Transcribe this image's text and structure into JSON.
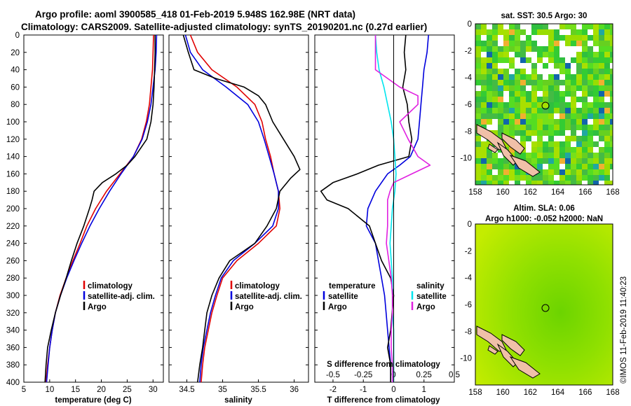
{
  "title_line1": "Argo profile: aoml 3900585_418 01-Feb-2019 5.948S 162.98E (NRT data)",
  "title_line2": "Climatology: CARS2009. Satellite-adjusted climatology: synTS_20190201.nc (0.27d earlier)",
  "sst_title": "sat. SST: 30.5 Argo: 30",
  "sla_title1": "Altim. SLA: 0.06",
  "sla_title2": "Argo h1000: -0.052 h2000: NaN",
  "imos_stamp": "©IMOS 11-Feb-2019 11:40:23",
  "colors": {
    "climatology": "#e00000",
    "satellite": "#0000dd",
    "argo": "#000000",
    "sat_salinity": "#00e5ee",
    "salinity_diff": "#e020e0"
  },
  "chart_data": [
    {
      "type": "line",
      "name": "temperature",
      "xlabel": "temperature (deg C)",
      "xlim": [
        5,
        32
      ],
      "ylim": [
        400,
        0
      ],
      "xticks": [
        "5",
        "10",
        "15",
        "20",
        "25",
        "30"
      ],
      "yticks": [
        "0",
        "20",
        "40",
        "60",
        "80",
        "100",
        "120",
        "140",
        "160",
        "180",
        "200",
        "220",
        "240",
        "260",
        "280",
        "300",
        "320",
        "340",
        "360",
        "380",
        "400"
      ],
      "legend": [
        "climatology",
        "satellite-adj. clim.",
        "Argo"
      ],
      "series": [
        {
          "name": "climatology",
          "depth": [
            0,
            20,
            40,
            60,
            80,
            100,
            120,
            140,
            160,
            180,
            200,
            220,
            240,
            260,
            280,
            300,
            320,
            340,
            360,
            380,
            400
          ],
          "values": [
            30.1,
            30.0,
            29.9,
            29.6,
            29.3,
            28.7,
            27.8,
            26.2,
            23.6,
            21.0,
            18.9,
            17.2,
            15.9,
            14.5,
            13.2,
            12.0,
            11.1,
            10.5,
            10.0,
            9.6,
            9.3
          ]
        },
        {
          "name": "satellite-adj. clim.",
          "depth": [
            0,
            20,
            40,
            60,
            80,
            100,
            120,
            140,
            160,
            180,
            200,
            220,
            240,
            260,
            280,
            300,
            320,
            340,
            360,
            380,
            400
          ],
          "values": [
            30.7,
            30.6,
            30.4,
            30.0,
            29.6,
            28.9,
            27.9,
            26.2,
            23.8,
            21.6,
            19.6,
            17.8,
            16.2,
            14.7,
            13.3,
            12.1,
            11.1,
            10.5,
            10.0,
            9.7,
            9.4
          ]
        },
        {
          "name": "Argo",
          "depth": [
            0,
            10,
            20,
            40,
            60,
            80,
            100,
            120,
            140,
            150,
            160,
            170,
            180,
            190,
            200,
            220,
            240,
            260,
            280,
            300,
            320,
            340,
            360,
            380,
            400
          ],
          "values": [
            30.4,
            30.4,
            30.4,
            30.3,
            30.2,
            30.0,
            29.6,
            28.8,
            26.5,
            25.0,
            22.8,
            20.2,
            18.6,
            18.2,
            17.7,
            16.6,
            15.3,
            14.2,
            13.2,
            12.1,
            11.1,
            10.3,
            9.6,
            9.3,
            9.1
          ]
        }
      ]
    },
    {
      "type": "line",
      "name": "salinity",
      "xlabel": "salinity",
      "xlim": [
        34.25,
        36.2
      ],
      "ylim": [
        400,
        0
      ],
      "xticks": [
        "34.5",
        "35",
        "35.5",
        "36"
      ],
      "legend": [
        "climatology",
        "satellite-adj. clim.",
        "Argo"
      ],
      "series": [
        {
          "name": "climatology",
          "depth": [
            0,
            20,
            40,
            60,
            80,
            100,
            120,
            140,
            160,
            180,
            200,
            220,
            240,
            260,
            280,
            300,
            320,
            340,
            360,
            380,
            400
          ],
          "values": [
            34.55,
            34.65,
            34.85,
            35.2,
            35.45,
            35.55,
            35.6,
            35.67,
            35.72,
            35.78,
            35.8,
            35.75,
            35.5,
            35.2,
            35.0,
            34.92,
            34.85,
            34.8,
            34.75,
            34.72,
            34.7
          ]
        },
        {
          "name": "satellite-adj. clim.",
          "depth": [
            0,
            20,
            40,
            60,
            80,
            100,
            120,
            140,
            160,
            180,
            200,
            220,
            240,
            260,
            280,
            300,
            320,
            340,
            360,
            380,
            400
          ],
          "values": [
            34.48,
            34.55,
            34.72,
            35.05,
            35.35,
            35.5,
            35.58,
            35.65,
            35.72,
            35.78,
            35.78,
            35.7,
            35.45,
            35.15,
            34.98,
            34.9,
            34.83,
            34.78,
            34.73,
            34.7,
            34.68
          ]
        },
        {
          "name": "Argo",
          "depth": [
            0,
            20,
            40,
            50,
            60,
            70,
            80,
            100,
            120,
            140,
            155,
            165,
            180,
            200,
            220,
            240,
            260,
            280,
            300,
            320,
            340,
            360,
            380,
            400
          ],
          "values": [
            34.45,
            34.52,
            34.6,
            34.9,
            35.3,
            35.5,
            35.6,
            35.7,
            35.85,
            36.0,
            36.08,
            35.95,
            35.8,
            35.75,
            35.62,
            35.45,
            35.1,
            34.95,
            34.85,
            34.78,
            34.75,
            34.72,
            34.68,
            34.65
          ]
        }
      ]
    },
    {
      "type": "line",
      "name": "difference",
      "xlabel": "T difference from climatology",
      "top_label": "S difference from climatology",
      "xlim": [
        -2.6,
        2.0
      ],
      "ylim": [
        400,
        0
      ],
      "xticks": [
        "-2",
        "-1",
        "0",
        "1"
      ],
      "top_xticks": [
        "-0.5",
        "-0.25",
        "0",
        "0.25",
        "0.5"
      ],
      "legend_temperature": [
        "temperature",
        "satellite",
        "Argo"
      ],
      "legend_salinity": [
        "salinity",
        "satellite",
        "Argo"
      ],
      "series": [
        {
          "name": "T satellite",
          "depth": [
            0,
            20,
            40,
            60,
            80,
            100,
            120,
            140,
            150,
            160,
            180,
            200,
            220,
            240,
            260,
            280,
            300,
            320,
            340,
            360,
            380,
            400
          ],
          "values": [
            1.15,
            1.1,
            1.0,
            0.95,
            0.9,
            0.85,
            0.8,
            0.55,
            0.2,
            -0.2,
            -0.6,
            -0.85,
            -0.9,
            -0.6,
            -0.5,
            -0.4,
            -0.3,
            -0.25,
            -0.2,
            -0.15,
            -0.1,
            -0.1
          ]
        },
        {
          "name": "T Argo",
          "depth": [
            0,
            20,
            40,
            60,
            80,
            100,
            120,
            140,
            150,
            160,
            170,
            180,
            190,
            200,
            220,
            240,
            260,
            280,
            300,
            320,
            340,
            360,
            380,
            400
          ],
          "values": [
            0.4,
            0.35,
            0.4,
            0.3,
            0.45,
            0.5,
            0.6,
            0.5,
            -0.5,
            -1.2,
            -2.0,
            -2.4,
            -2.2,
            -1.5,
            -0.8,
            -0.6,
            -0.4,
            -0.1,
            0.0,
            -0.05,
            -0.1,
            -0.2,
            -0.1,
            -0.1
          ]
        },
        {
          "name": "S satellite",
          "depth": [
            0,
            20,
            40,
            60,
            80,
            100,
            120,
            140,
            160,
            180,
            200,
            220,
            240,
            260,
            280,
            300,
            320,
            340,
            360,
            380,
            400
          ],
          "values": [
            -0.15,
            -0.14,
            -0.12,
            -0.08,
            -0.05,
            -0.02,
            0.0,
            0.01,
            0.02,
            0.01,
            -0.01,
            -0.02,
            -0.03,
            -0.02,
            -0.01,
            -0.01,
            -0.01,
            0.0,
            0.0,
            0.0,
            0.0
          ]
        },
        {
          "name": "S Argo",
          "depth": [
            0,
            20,
            40,
            60,
            70,
            80,
            100,
            120,
            140,
            150,
            160,
            170,
            180,
            190,
            200,
            220,
            240,
            260,
            280,
            300,
            320,
            340,
            360,
            380,
            400
          ],
          "values": [
            -0.15,
            -0.15,
            -0.15,
            0.05,
            0.2,
            0.2,
            0.05,
            0.12,
            0.2,
            0.3,
            0.15,
            0.0,
            -0.03,
            -0.05,
            -0.05,
            -0.05,
            -0.06,
            -0.04,
            -0.02,
            -0.01,
            -0.01,
            -0.02,
            -0.02,
            -0.01,
            -0.01
          ]
        }
      ]
    },
    {
      "type": "heatmap",
      "name": "sst_map",
      "title": "sat. SST: 30.5 Argo: 30",
      "xlim": [
        158,
        168
      ],
      "ylim": [
        -12,
        0
      ],
      "xticks": [
        "158",
        "160",
        "162",
        "164",
        "166",
        "168"
      ],
      "yticks": [
        "0",
        "-2",
        "-4",
        "-6",
        "-8",
        "-10"
      ],
      "argo_position": [
        162.98,
        -5.948
      ]
    },
    {
      "type": "heatmap",
      "name": "sla_map",
      "title": "Altim. SLA: 0.06",
      "xlim": [
        158,
        168
      ],
      "ylim": [
        -12,
        0
      ],
      "xticks": [
        "158",
        "160",
        "162",
        "164",
        "166",
        "168"
      ],
      "yticks": [
        "0",
        "-2",
        "-4",
        "-6",
        "-8",
        "-10"
      ],
      "argo_position": [
        162.98,
        -5.948
      ]
    }
  ]
}
